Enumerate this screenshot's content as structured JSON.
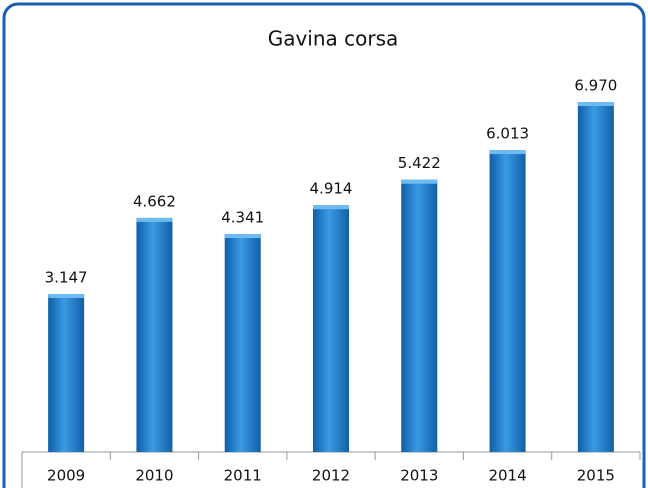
{
  "chart_data": {
    "type": "bar",
    "title": "Gavina corsa",
    "categories": [
      "2009",
      "2010",
      "2011",
      "2012",
      "2013",
      "2014",
      "2015"
    ],
    "values": [
      3147,
      4662,
      4341,
      4914,
      5422,
      6013,
      6970
    ],
    "value_labels": [
      "3.147",
      "4.662",
      "4.341",
      "4.914",
      "5.422",
      "6.013",
      "6.970"
    ],
    "color": "#1f7fd0"
  }
}
